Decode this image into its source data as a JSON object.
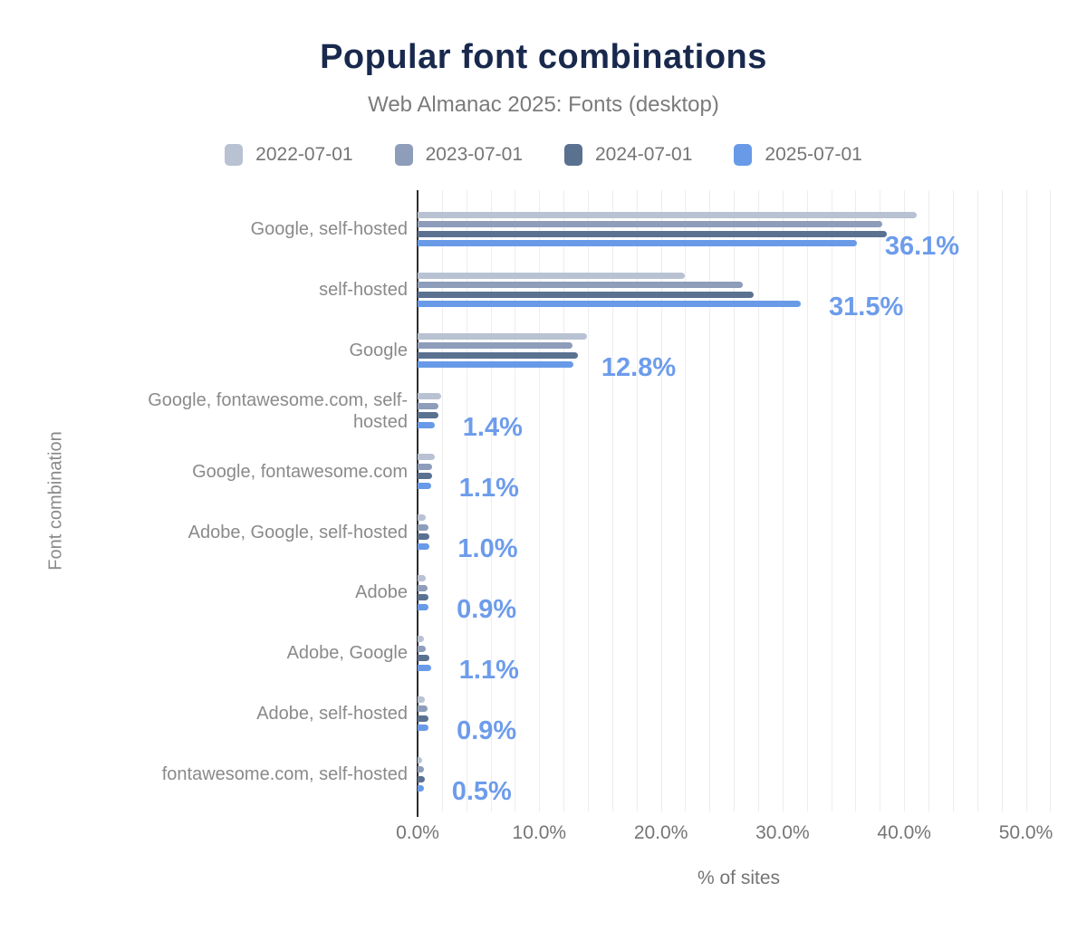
{
  "title": "Popular font combinations",
  "subtitle": "Web Almanac 2025: Fonts (desktop)",
  "axes": {
    "x_label": "% of sites",
    "y_label": "Font combination",
    "x_ticks": [
      {
        "value": 0,
        "label": "0.0%"
      },
      {
        "value": 10,
        "label": "10.0%"
      },
      {
        "value": 20,
        "label": "20.0%"
      },
      {
        "value": 30,
        "label": "30.0%"
      },
      {
        "value": 40,
        "label": "40.0%"
      },
      {
        "value": 50,
        "label": "50.0%"
      }
    ]
  },
  "colors": {
    "title": "#19294d",
    "subtitle": "#7b7b7b",
    "category_text": "#8a8a8a",
    "tick_text": "#757575",
    "data_label": "#6d9ceb",
    "axis_line": "#2d2d2d",
    "gridline": "#ededed"
  },
  "chart_data": {
    "type": "bar",
    "orientation": "horizontal",
    "title": "Popular font combinations",
    "subtitle": "Web Almanac 2025: Fonts (desktop)",
    "xlabel": "% of sites",
    "ylabel": "Font combination",
    "xlim": [
      0,
      52
    ],
    "grid_step_percent": 2,
    "legend_position": "top",
    "categories": [
      "Google, self-hosted",
      "self-hosted",
      "Google",
      "Google, fontawesome.com, self-hosted",
      "Google, fontawesome.com",
      "Adobe, Google, self-hosted",
      "Adobe",
      "Adobe, Google",
      "Adobe, self-hosted",
      "fontawesome.com, self-hosted"
    ],
    "series": [
      {
        "name": "2022-07-01",
        "color": "#b8c2d2",
        "values": [
          41.0,
          22.0,
          13.9,
          1.9,
          1.4,
          0.7,
          0.7,
          0.5,
          0.6,
          0.4
        ]
      },
      {
        "name": "2023-07-01",
        "color": "#8d9dba",
        "values": [
          38.2,
          26.7,
          12.7,
          1.7,
          1.2,
          0.9,
          0.8,
          0.7,
          0.8,
          0.5
        ]
      },
      {
        "name": "2024-07-01",
        "color": "#5a7190",
        "values": [
          38.6,
          27.6,
          13.2,
          1.7,
          1.2,
          1.0,
          0.9,
          1.0,
          0.9,
          0.6
        ]
      },
      {
        "name": "2025-07-01",
        "color": "#689ae8",
        "values": [
          36.1,
          31.5,
          12.8,
          1.4,
          1.1,
          1.0,
          0.9,
          1.1,
          0.9,
          0.5
        ]
      }
    ],
    "data_labels_series": "2025-07-01",
    "data_labels": [
      "36.1%",
      "31.5%",
      "12.8%",
      "1.4%",
      "1.1%",
      "1.0%",
      "0.9%",
      "1.1%",
      "0.9%",
      "0.5%"
    ]
  }
}
